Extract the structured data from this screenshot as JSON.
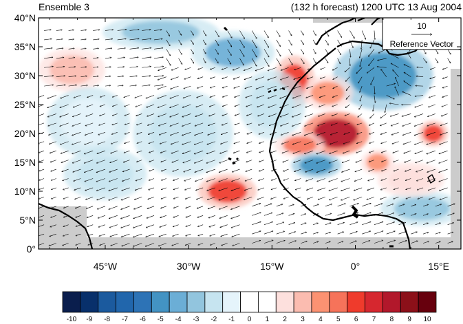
{
  "header": {
    "left_title": "Ensemble 3",
    "right_title": "(132 h forecast) 1200 UTC 13 Aug 2004"
  },
  "map": {
    "lon_range": [
      -57,
      19
    ],
    "lat_range": [
      0,
      40
    ],
    "lat_ticks": [
      {
        "value": 0,
        "label": "0°"
      },
      {
        "value": 5,
        "label": "5°N"
      },
      {
        "value": 10,
        "label": "10°N"
      },
      {
        "value": 15,
        "label": "15°N"
      },
      {
        "value": 20,
        "label": "20°N"
      },
      {
        "value": 25,
        "label": "25°N"
      },
      {
        "value": 30,
        "label": "30°N"
      },
      {
        "value": 35,
        "label": "35°N"
      },
      {
        "value": 40,
        "label": "40°N"
      }
    ],
    "lon_ticks": [
      {
        "value": -45,
        "label": "45°W"
      },
      {
        "value": -30,
        "label": "30°W"
      },
      {
        "value": -15,
        "label": "15°W"
      },
      {
        "value": 0,
        "label": "0°"
      },
      {
        "value": 15,
        "label": "15°E"
      }
    ]
  },
  "reference_vector": {
    "value": "10",
    "label": "Reference Vector"
  },
  "colorbar": {
    "labels": [
      "-10",
      "-9",
      "-8",
      "-7",
      "-6",
      "-5",
      "-4",
      "-3",
      "-2",
      "-1",
      "0",
      "1",
      "2",
      "3",
      "4",
      "5",
      "6",
      "7",
      "8",
      "9",
      "10"
    ],
    "colors": [
      "#0a1e4d",
      "#08306b",
      "#1b5a9e",
      "#2166ac",
      "#2d73b6",
      "#4393c3",
      "#6baed6",
      "#92c5de",
      "#c6e4f0",
      "#e5f4fb",
      "#ffffff",
      "#ffffff",
      "#fde0dd",
      "#fbbcb0",
      "#fc9272",
      "#f6735a",
      "#ef3b2c",
      "#d6272f",
      "#b2182b",
      "#8c1019",
      "#67000d"
    ]
  },
  "anomaly_fields": [
    {
      "lon": -35,
      "lat": 37.5,
      "rx": 7,
      "ry": 2,
      "value": -3
    },
    {
      "lon": -22,
      "lat": 34,
      "rx": 5,
      "ry": 2.5,
      "value": -4
    },
    {
      "lon": -11,
      "lat": 29,
      "rx": 2.5,
      "ry": 3,
      "value": 6
    },
    {
      "lon": -3.5,
      "lat": 20,
      "rx": 4,
      "ry": 2.5,
      "value": 8
    },
    {
      "lon": 5,
      "lat": 30,
      "rx": 6,
      "ry": 4,
      "value": -5
    },
    {
      "lon": -23,
      "lat": 10,
      "rx": 3.5,
      "ry": 2,
      "value": 6
    },
    {
      "lon": -10,
      "lat": 18,
      "rx": 3,
      "ry": 1.5,
      "value": 5
    },
    {
      "lon": 14,
      "lat": 20,
      "rx": 1.8,
      "ry": 1.5,
      "value": 6
    },
    {
      "lon": -51,
      "lat": 31,
      "rx": 4,
      "ry": 2.5,
      "value": 3
    },
    {
      "lon": -7,
      "lat": 14.5,
      "rx": 3,
      "ry": 1.5,
      "value": -5
    },
    {
      "lon": 4,
      "lat": 15,
      "rx": 2,
      "ry": 1.5,
      "value": 4
    },
    {
      "lon": -31,
      "lat": 20,
      "rx": 6,
      "ry": 5,
      "value": -2
    },
    {
      "lon": -48,
      "lat": 22,
      "rx": 5,
      "ry": 4,
      "value": -1
    },
    {
      "lon": -15,
      "lat": 25,
      "rx": 4,
      "ry": 4,
      "value": -2
    },
    {
      "lon": 12,
      "lat": 7,
      "rx": 5,
      "ry": 2,
      "value": -3
    },
    {
      "lon": -45,
      "lat": 13,
      "rx": 5,
      "ry": 3,
      "value": -2
    },
    {
      "lon": -5,
      "lat": 27,
      "rx": 3,
      "ry": 2,
      "value": 4
    },
    {
      "lon": 10,
      "lat": 12,
      "rx": 4,
      "ry": 2,
      "value": 2
    }
  ]
}
